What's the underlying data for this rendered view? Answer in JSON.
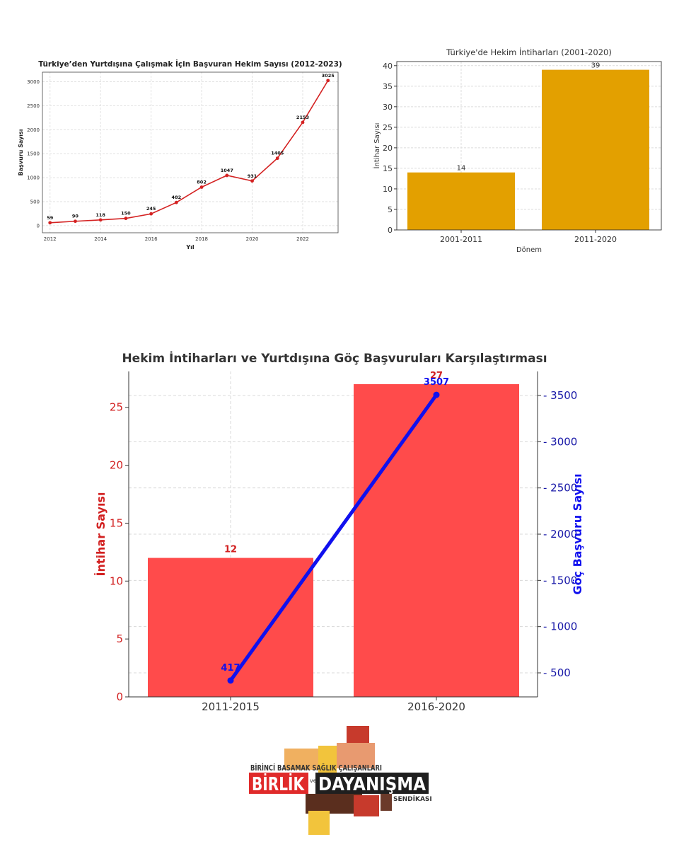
{
  "chart_data": [
    {
      "type": "line",
      "title": "Türkiye’den Yurtdışına Çalışmak İçin Başvuran Hekim Sayısı (2012-2023)",
      "xlabel": "Yıl",
      "ylabel": "Başvuru Sayısı",
      "x": [
        2012,
        2013,
        2014,
        2015,
        2016,
        2017,
        2018,
        2019,
        2020,
        2021,
        2022,
        2023
      ],
      "values": [
        59,
        90,
        118,
        150,
        245,
        482,
        802,
        1047,
        931,
        1405,
        2153,
        3025
      ],
      "xticks": [
        "2012",
        "2014",
        "2016",
        "2018",
        "2020",
        "2022"
      ],
      "yticks": [
        "0",
        "500",
        "1000",
        "1500",
        "2000",
        "2500",
        "3000"
      ],
      "xlim": [
        2011.7,
        2023.4
      ],
      "ylim": [
        -150,
        3200
      ],
      "grid": true,
      "color": "#d42222"
    },
    {
      "type": "bar",
      "title": "Türkiye'de Hekim İntiharları (2001-2020)",
      "xlabel": "Dönem",
      "ylabel": "İntihar Sayısı",
      "categories": [
        "2001-2011",
        "2011-2020"
      ],
      "values": [
        14,
        39
      ],
      "yticks": [
        "0",
        "5",
        "10",
        "15",
        "20",
        "25",
        "30",
        "35",
        "40"
      ],
      "ylim": [
        0,
        41
      ],
      "grid": true,
      "color": "#e3a000"
    },
    {
      "type": "bar",
      "title": "Hekim İntiharları ve Yurtdışına Göç Başvuruları Karşılaştırması",
      "categories": [
        "2011-2015",
        "2016-2020"
      ],
      "bar_series": {
        "values": [
          12,
          27
        ],
        "axis": "left",
        "color": "#ff4b4b",
        "label_color": "#d22020"
      },
      "line_series": {
        "values": [
          417,
          3507
        ],
        "axis": "right",
        "color": "#1010ee"
      },
      "ylabel_left": "İntihar Sayısı",
      "ylabel_right": "Göç Başvuru Sayısı",
      "yticks_left": [
        "0",
        "5",
        "10",
        "15",
        "20",
        "25"
      ],
      "yticks_right": [
        "500",
        "1000",
        "1500",
        "2000",
        "2500",
        "3000",
        "3500"
      ],
      "ylim_left": [
        0,
        28.1
      ],
      "ylim_right": [
        240,
        3760
      ],
      "grid": true,
      "left_axis_color": "#d22020",
      "right_axis_color": "#1a1aa8"
    }
  ],
  "logo": {
    "top_line": "BİRİNCİ BASAMAK SAĞLIK ÇALIŞANLARI",
    "word1": "BİRLİK",
    "connector": "ve",
    "word2": "DAYANIŞMA",
    "bottom_line": "SENDİKASI"
  }
}
